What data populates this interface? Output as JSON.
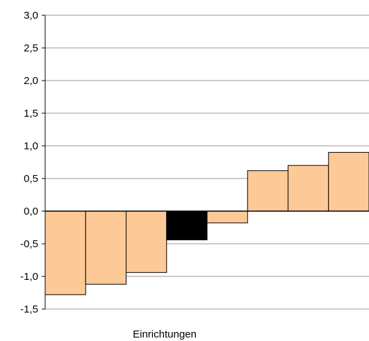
{
  "chart_data": {
    "type": "bar",
    "title": "",
    "xlabel": "Einrichtungen",
    "ylabel": "",
    "ylim": [
      -1.5,
      3.0
    ],
    "yticks": [
      "3,0",
      "2,5",
      "2,0",
      "1,5",
      "1,0",
      "0,5",
      "0,0",
      "-0,5",
      "-1,0",
      "-1,5"
    ],
    "ytick_values": [
      3.0,
      2.5,
      2.0,
      1.5,
      1.0,
      0.5,
      0.0,
      -0.5,
      -1.0,
      -1.5
    ],
    "grid": true,
    "values": [
      -1.28,
      -1.12,
      -0.94,
      -0.44,
      -0.18,
      0.62,
      0.7,
      0.9
    ],
    "bar_colors": [
      "#fdca97",
      "#fdca97",
      "#fdca97",
      "#000000",
      "#fdca97",
      "#fdca97",
      "#fdca97",
      "#fdca97"
    ],
    "highlight_index": 3
  }
}
